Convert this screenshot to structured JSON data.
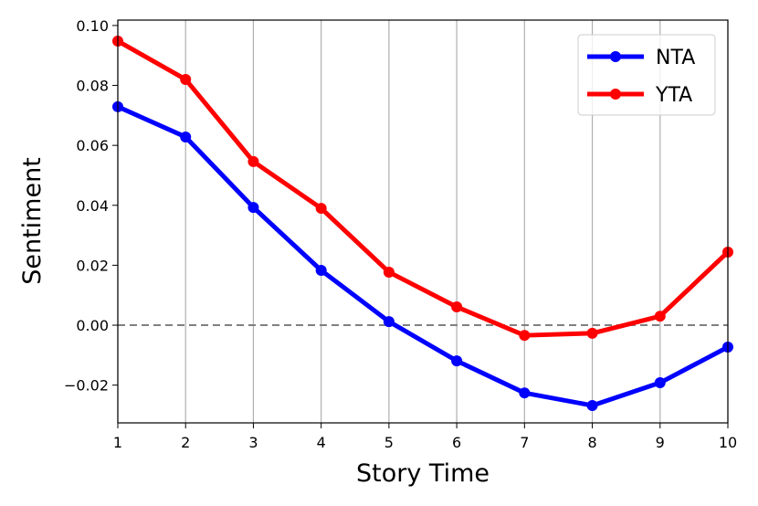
{
  "chart_data": {
    "type": "line",
    "title": "",
    "xlabel": "Story Time",
    "ylabel": "Sentiment",
    "x": [
      1,
      2,
      3,
      4,
      5,
      6,
      7,
      8,
      9,
      10
    ],
    "xlim": [
      1,
      10
    ],
    "ylim": [
      -0.0326,
      0.1018
    ],
    "xticks": [
      "1",
      "2",
      "3",
      "4",
      "5",
      "6",
      "7",
      "8",
      "9",
      "10"
    ],
    "yticks": [
      -0.02,
      0.0,
      0.02,
      0.04,
      0.06,
      0.08,
      0.1
    ],
    "ytick_labels": [
      "−0.02",
      "0.00",
      "0.02",
      "0.04",
      "0.06",
      "0.08",
      "0.10"
    ],
    "grid": "vertical lines at x ticks",
    "reference_line": {
      "y": 0,
      "style": "dashed",
      "color": "#808080"
    },
    "legend_position": "top-right",
    "series": [
      {
        "name": "NTA",
        "color": "#0000ff",
        "values": [
          0.0729,
          0.0628,
          0.0393,
          0.0183,
          0.0012,
          -0.0119,
          -0.0226,
          -0.0268,
          -0.0192,
          -0.0073
        ]
      },
      {
        "name": "YTA",
        "color": "#ff0000",
        "values": [
          0.0948,
          0.082,
          0.0546,
          0.039,
          0.0177,
          0.0061,
          -0.0034,
          -0.0027,
          0.003,
          0.0244
        ]
      }
    ]
  }
}
